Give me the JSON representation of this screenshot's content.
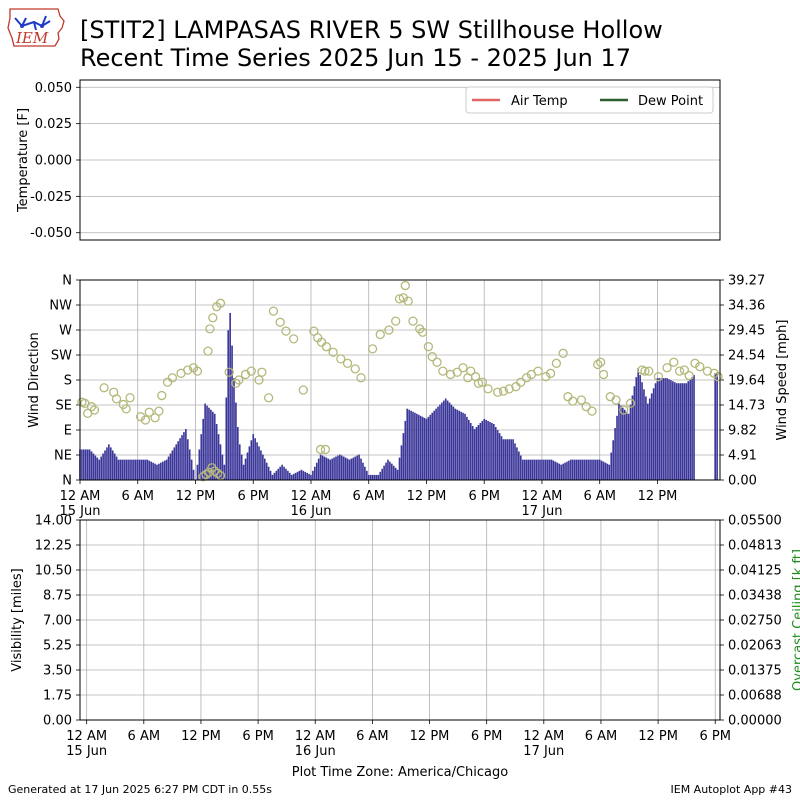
{
  "header": {
    "logo_text": "IEM",
    "title_line1": "[STIT2] LAMPASAS RIVER 5 SW Stillhouse Hollow",
    "title_line2": "Recent Time Series 2025 Jun 15 - 2025 Jun 17"
  },
  "footer": {
    "generated": "Generated at 17 Jun 2025 6:27 PM CDT in 0.55s",
    "app": "IEM Autoplot App #43"
  },
  "chart_data": [
    {
      "type": "line",
      "ylabel": "Temperature [F]",
      "y_ticks": [
        "0.050",
        "0.025",
        "0.000",
        "-0.025",
        "-0.050"
      ],
      "y_tick_values": [
        0.05,
        0.025,
        0.0,
        -0.025,
        -0.05
      ],
      "ylim": [
        -0.055,
        0.055
      ],
      "grid": true,
      "legend": {
        "position": "top-right",
        "entries": [
          {
            "label": "Air Temp",
            "color": "#e06666"
          },
          {
            "label": "Dew Point",
            "color": "#2d5e2d"
          }
        ]
      },
      "series": []
    },
    {
      "type": "bar+scatter",
      "ylabel_left": "Wind Direction",
      "ylabel_right": "Wind Speed [mph]",
      "dir_ticks": [
        "N",
        "NE",
        "E",
        "SE",
        "S",
        "SW",
        "W",
        "NW",
        "N"
      ],
      "dir_tick_values": [
        0,
        45,
        90,
        135,
        180,
        225,
        270,
        315,
        360
      ],
      "speed_ticks": [
        "0.00",
        "4.91",
        "9.82",
        "14.73",
        "19.64",
        "24.54",
        "29.45",
        "34.36",
        "39.27"
      ],
      "speed_tick_values": [
        0,
        4.91,
        9.82,
        14.73,
        19.64,
        24.54,
        29.45,
        34.36,
        39.27
      ],
      "speed_ylim": [
        0,
        39.27
      ],
      "x_ticks": [
        "12 AM\n15 Jun",
        "6 AM",
        "12 PM",
        "6 PM",
        "12 AM\n16 Jun",
        "6 AM",
        "12 PM",
        "6 PM",
        "12 AM\n17 Jun",
        "6 AM",
        "12 PM"
      ],
      "x_tick_hours": [
        0,
        6,
        12,
        18,
        24,
        30,
        36,
        42,
        48,
        54,
        60
      ],
      "xlim_hours": [
        0,
        66.5
      ],
      "grid": true,
      "bar_color": "#3b3699",
      "point_color": "#b5b87a",
      "speed_hours": [
        0,
        1,
        2,
        3,
        4,
        5,
        6,
        7,
        8,
        9,
        10,
        11,
        12,
        13,
        14,
        15,
        15.5,
        16,
        16.5,
        17,
        18,
        19,
        20,
        21,
        22,
        23,
        24,
        25,
        26,
        27,
        28,
        29,
        30,
        31,
        32,
        33,
        34,
        35,
        36,
        37,
        38,
        39,
        40,
        41,
        42,
        43,
        44,
        45,
        46,
        47,
        48,
        49,
        50,
        51,
        52,
        53,
        54,
        55,
        56,
        57,
        58,
        59,
        60,
        61,
        62,
        63,
        64,
        65,
        66
      ],
      "speed_values": [
        6,
        6,
        4,
        7,
        4,
        4,
        4,
        4,
        3,
        4,
        7,
        10,
        0,
        15,
        13,
        3,
        36,
        20,
        8,
        3,
        9,
        5,
        1,
        3,
        1,
        2,
        1,
        5,
        4,
        5,
        4,
        5,
        1,
        1,
        4,
        2,
        14,
        13,
        12,
        14,
        16,
        14,
        13,
        10,
        12,
        11,
        8,
        8,
        4,
        4,
        4,
        4,
        3,
        4,
        4,
        4,
        4,
        3,
        15,
        13,
        22,
        15,
        20,
        20,
        19,
        19,
        21
      ],
      "dir_hours": [
        0.2,
        0.5,
        0.8,
        1.2,
        1.5,
        2.5,
        3.5,
        3.8,
        4.5,
        4.8,
        5.2,
        6.3,
        6.8,
        7.2,
        7.8,
        8.2,
        8.5,
        9.1,
        9.6,
        10.5,
        11.2,
        11.8,
        12.2,
        13.3,
        13.5,
        13.8,
        14.2,
        14.6,
        15.5,
        16.2,
        16.5,
        17.2,
        17.8,
        18.6,
        18.9,
        19.6,
        20.1,
        20.8,
        21.4,
        22.2,
        23.2,
        24.3,
        24.7,
        25.1,
        25.6,
        26.3,
        27.1,
        27.8,
        28.6,
        29.2,
        30.4,
        31.2,
        32.1,
        32.8,
        33.2,
        33.6,
        33.8,
        34.1,
        34.6,
        35.3,
        35.6,
        36.2,
        36.6,
        37.1,
        37.7,
        38.5,
        39.2,
        39.8,
        40.3,
        40.6,
        41.1,
        41.4,
        41.8,
        42.4,
        43.4,
        44.0,
        44.6,
        45.3,
        45.8,
        46.4,
        46.9,
        47.6,
        48.4,
        48.9,
        49.5,
        50.2,
        50.7,
        51.2,
        52.1,
        52.6,
        53.2,
        53.8,
        54.1,
        54.4,
        55.1,
        55.7,
        56.5,
        57.2,
        58.4,
        58.7,
        59.1,
        60.1,
        61.0,
        61.7,
        62.3,
        62.8,
        63.3,
        63.9,
        64.4,
        65.2,
        65.9,
        66.3
      ],
      "dir_values": [
        140,
        138,
        120,
        132,
        126,
        166,
        158,
        146,
        136,
        128,
        148,
        114,
        108,
        122,
        112,
        124,
        152,
        176,
        184,
        192,
        198,
        202,
        196,
        232,
        272,
        292,
        312,
        318,
        194,
        174,
        180,
        190,
        196,
        180,
        194,
        148,
        304,
        284,
        268,
        254,
        162,
        268,
        256,
        248,
        240,
        230,
        218,
        210,
        200,
        184,
        236,
        262,
        270,
        286,
        326,
        328,
        350,
        322,
        286,
        272,
        266,
        240,
        222,
        212,
        196,
        190,
        194,
        202,
        184,
        196,
        186,
        174,
        176,
        164,
        158,
        160,
        164,
        168,
        176,
        184,
        190,
        196,
        186,
        192,
        210,
        228,
        150,
        142,
        144,
        132,
        124,
        208,
        212,
        190,
        150,
        144,
        126,
        138,
        198,
        196,
        196,
        186,
        202,
        212,
        196,
        198,
        188,
        210,
        204,
        196,
        192,
        186
      ],
      "dir_low_hours": [
        12.8,
        13.1,
        13.4,
        13.7,
        14.0,
        14.3,
        14.6,
        25.0,
        25.5
      ],
      "dir_low_values": [
        6,
        10,
        14,
        22,
        16,
        12,
        8,
        55,
        55
      ]
    },
    {
      "type": "line",
      "ylabel_left": "Visibility [miles]",
      "ylabel_right": "Overcast Ceiling [k ft]",
      "y_ticks": [
        "0.00",
        "1.75",
        "3.50",
        "5.25",
        "7.00",
        "8.75",
        "10.50",
        "12.25",
        "14.00"
      ],
      "y_tick_values": [
        0,
        1.75,
        3.5,
        5.25,
        7,
        8.75,
        10.5,
        12.25,
        14
      ],
      "y_ticks_right": [
        "0.00000",
        "0.00688",
        "0.01375",
        "0.02063",
        "0.02750",
        "0.03438",
        "0.04125",
        "0.04813",
        "0.05500"
      ],
      "y_tick_values_right": [
        0,
        0.006875,
        0.01375,
        0.020625,
        0.0275,
        0.034375,
        0.04125,
        0.048125,
        0.055
      ],
      "ylim": [
        0,
        14
      ],
      "ylim_right": [
        0,
        0.055
      ],
      "x_ticks": [
        "12 AM\n15 Jun",
        "6 AM",
        "12 PM",
        "6 PM",
        "12 AM\n16 Jun",
        "6 AM",
        "12 PM",
        "6 PM",
        "12 AM\n17 Jun",
        "6 AM",
        "12 PM",
        "6 PM"
      ],
      "x_tick_hours": [
        0,
        6,
        12,
        18,
        24,
        30,
        36,
        42,
        48,
        54,
        60,
        66
      ],
      "xlim_hours": [
        -0.7,
        66.5
      ],
      "xlabel": "Plot Time Zone: America/Chicago",
      "grid": true,
      "right_label_color": "#1f8c1f",
      "series": []
    }
  ]
}
